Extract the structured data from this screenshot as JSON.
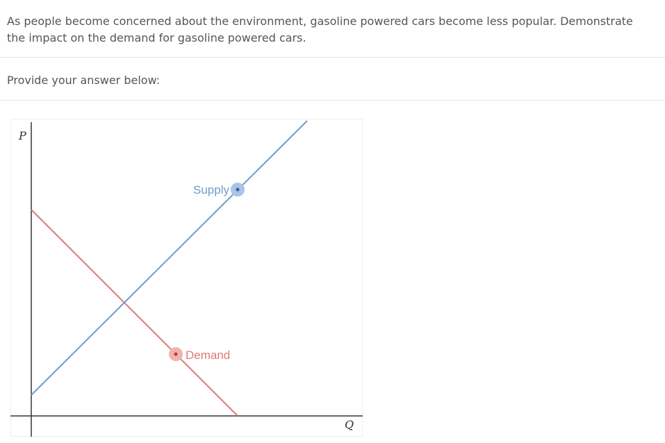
{
  "question": {
    "text": "As people become concerned about the environment, gasoline powered cars become less popular.  Demonstrate the impact on the demand for gasoline powered cars."
  },
  "answer": {
    "prompt": "Provide your answer below:"
  },
  "graph": {
    "y_axis_label": "P",
    "x_axis_label": "Q",
    "supply": {
      "label": "Supply",
      "color": "#6f9ccb",
      "handle_color": "#a8c4e6",
      "handle_dot_color": "#2d5fa4"
    },
    "demand": {
      "label": "Demand",
      "color": "#d97a78",
      "handle_color": "#efb3b0",
      "handle_dot_color": "#c0392b"
    },
    "axis_color": "#333333"
  }
}
